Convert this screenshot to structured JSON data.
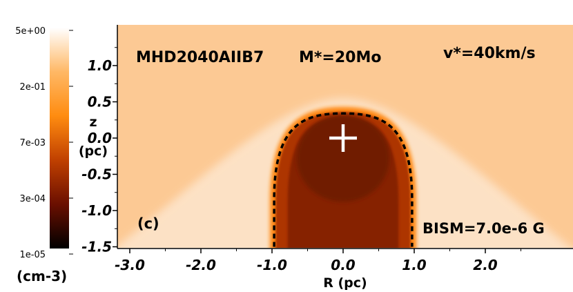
{
  "chart_data": {
    "type": "heatmap",
    "title": "",
    "xlabel": "R (pc)",
    "ylabel": "z\n(pc)",
    "xlim": [
      -3.0,
      3.0
    ],
    "ylim": [
      -1.5,
      1.5
    ],
    "x_ticks": [
      {
        "value": -3.0,
        "label": "-3.0"
      },
      {
        "value": -2.0,
        "label": "-2.0"
      },
      {
        "value": -1.0,
        "label": "-1.0"
      },
      {
        "value": 0.0,
        "label": "0.0"
      },
      {
        "value": 1.0,
        "label": "1.0"
      },
      {
        "value": 2.0,
        "label": "2.0"
      }
    ],
    "y_ticks": [
      {
        "value": 1.0,
        "label": "1.0"
      },
      {
        "value": 0.5,
        "label": "0.5"
      },
      {
        "value": 0.0,
        "label": "0.0"
      },
      {
        "value": -0.5,
        "label": "-0.5"
      },
      {
        "value": -1.0,
        "label": "-1.0"
      },
      {
        "value": -1.5,
        "label": "-1.5"
      }
    ],
    "colorbar": {
      "scale": "log",
      "unit": "(cm-3)",
      "ticks": [
        "5e+00",
        "2e-01",
        "7e-03",
        "3e-04",
        "1e-05"
      ],
      "colors": [
        "#ffffff",
        "#ffb865",
        "#ff8c10",
        "#c04000",
        "#6a0f00",
        "#000000"
      ]
    },
    "annotations": {
      "model": "MHD2040AIIB7",
      "mass": "M*=20Mo",
      "velocity": "v*=40km/s",
      "panel": "(c)",
      "field": "BISM=7.0e-6 G"
    },
    "star_position": {
      "R": 0.0,
      "z": 0.0
    },
    "colors": {
      "ambient": "#fcc994",
      "shocked_ism": "#fde3c8",
      "bow_edge": "#ff8a15",
      "wind_shell": "#ad3505",
      "hot_bubble": "#862104",
      "inner_core": "#6f1a04",
      "contact_line": "#000000",
      "star_marker": "#ffffff"
    }
  }
}
